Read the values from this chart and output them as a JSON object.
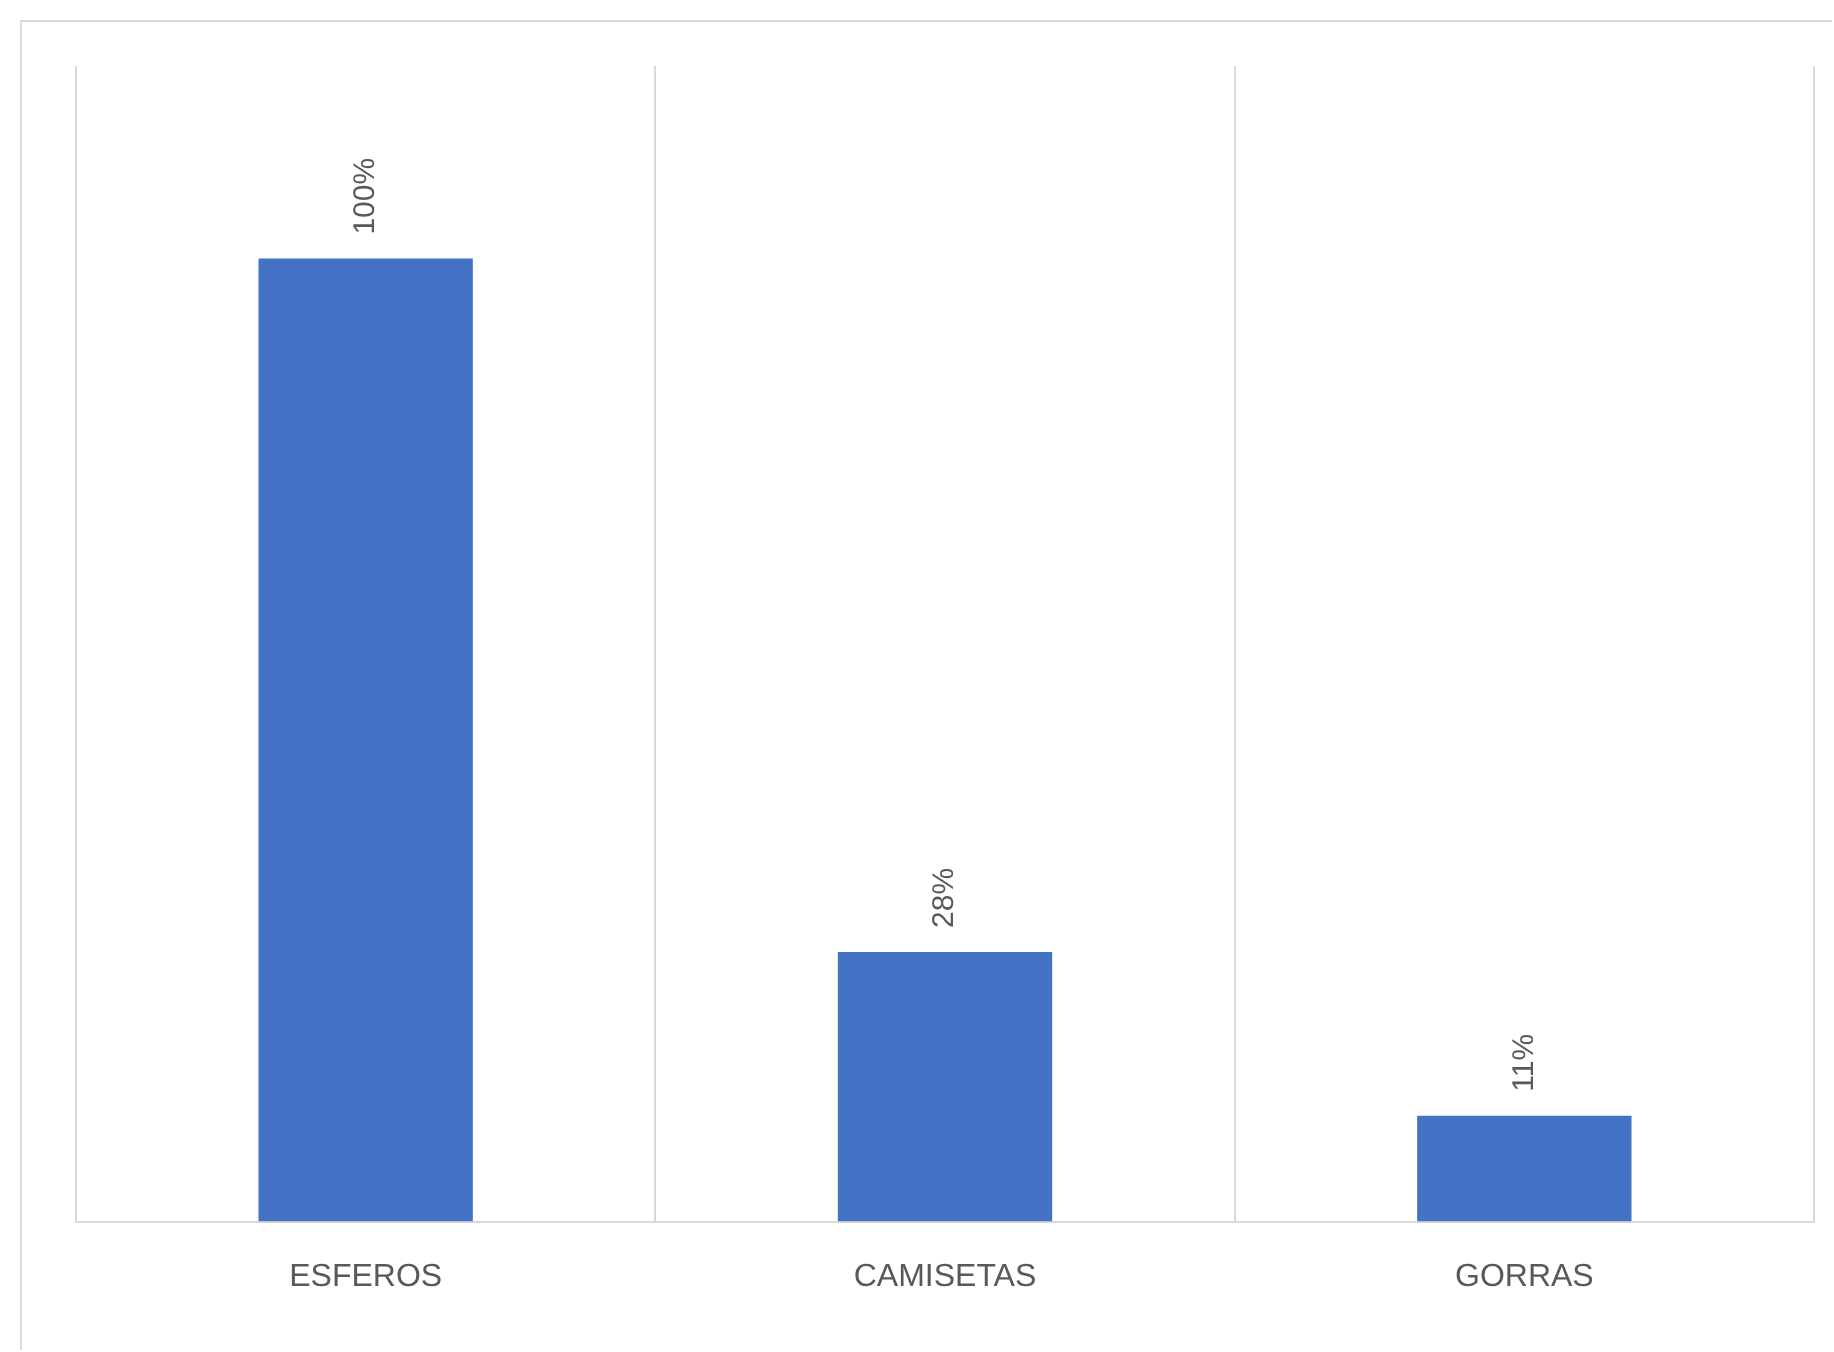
{
  "chart_data": {
    "type": "bar",
    "categories": [
      "ESFEROS",
      "CAMISETAS",
      "GORRAS"
    ],
    "values": [
      100,
      28,
      11
    ],
    "value_labels": [
      "100%",
      "28%",
      "11%"
    ],
    "color": "#4472c4",
    "ylim": [
      0,
      120
    ],
    "grid": "x",
    "tick_labels": "x",
    "legend": false
  }
}
